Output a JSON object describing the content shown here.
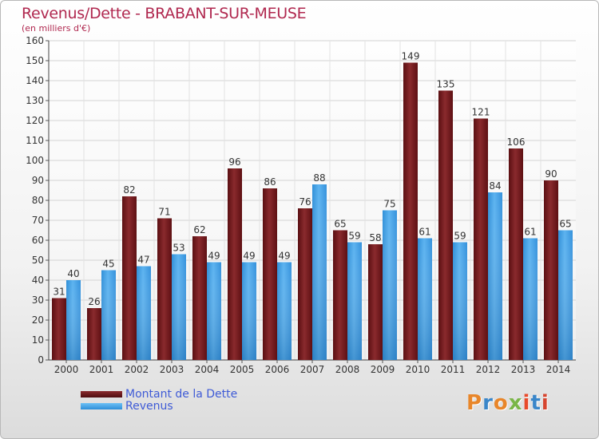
{
  "header": {
    "title": "Revenus/Dette - BRABANT-SUR-MEUSE",
    "subtitle": "(en milliers d'€)"
  },
  "legend": {
    "items": [
      {
        "label": "Montant de la Dette",
        "color": "#6e1418"
      },
      {
        "label": "Revenus",
        "color": "#3d9ee3"
      }
    ]
  },
  "logo": {
    "text": "Proxiti",
    "letter_colors": [
      "#e8862a",
      "#3a86c9",
      "#e8862a",
      "#7ab648",
      "#e84a2a",
      "#3a86c9",
      "#d6452f"
    ]
  },
  "chart_data": {
    "type": "bar",
    "title": "Revenus/Dette - BRABANT-SUR-MEUSE",
    "subtitle": "(en milliers d'€)",
    "categories": [
      "2000",
      "2001",
      "2002",
      "2003",
      "2004",
      "2005",
      "2006",
      "2007",
      "2008",
      "2009",
      "2010",
      "2011",
      "2012",
      "2013",
      "2014"
    ],
    "series": [
      {
        "name": "Montant de la Dette",
        "color": "#7a1c20",
        "values": [
          31,
          26,
          82,
          71,
          62,
          96,
          86,
          76,
          65,
          58,
          149,
          135,
          121,
          106,
          90
        ]
      },
      {
        "name": "Revenus",
        "color": "#4aa6ea",
        "values": [
          40,
          45,
          47,
          53,
          49,
          49,
          49,
          88,
          59,
          75,
          61,
          59,
          84,
          61,
          65
        ]
      }
    ],
    "ylim": [
      0,
      160
    ],
    "ytick_step": 10,
    "grid": true,
    "legend_position": "bottom-left"
  }
}
